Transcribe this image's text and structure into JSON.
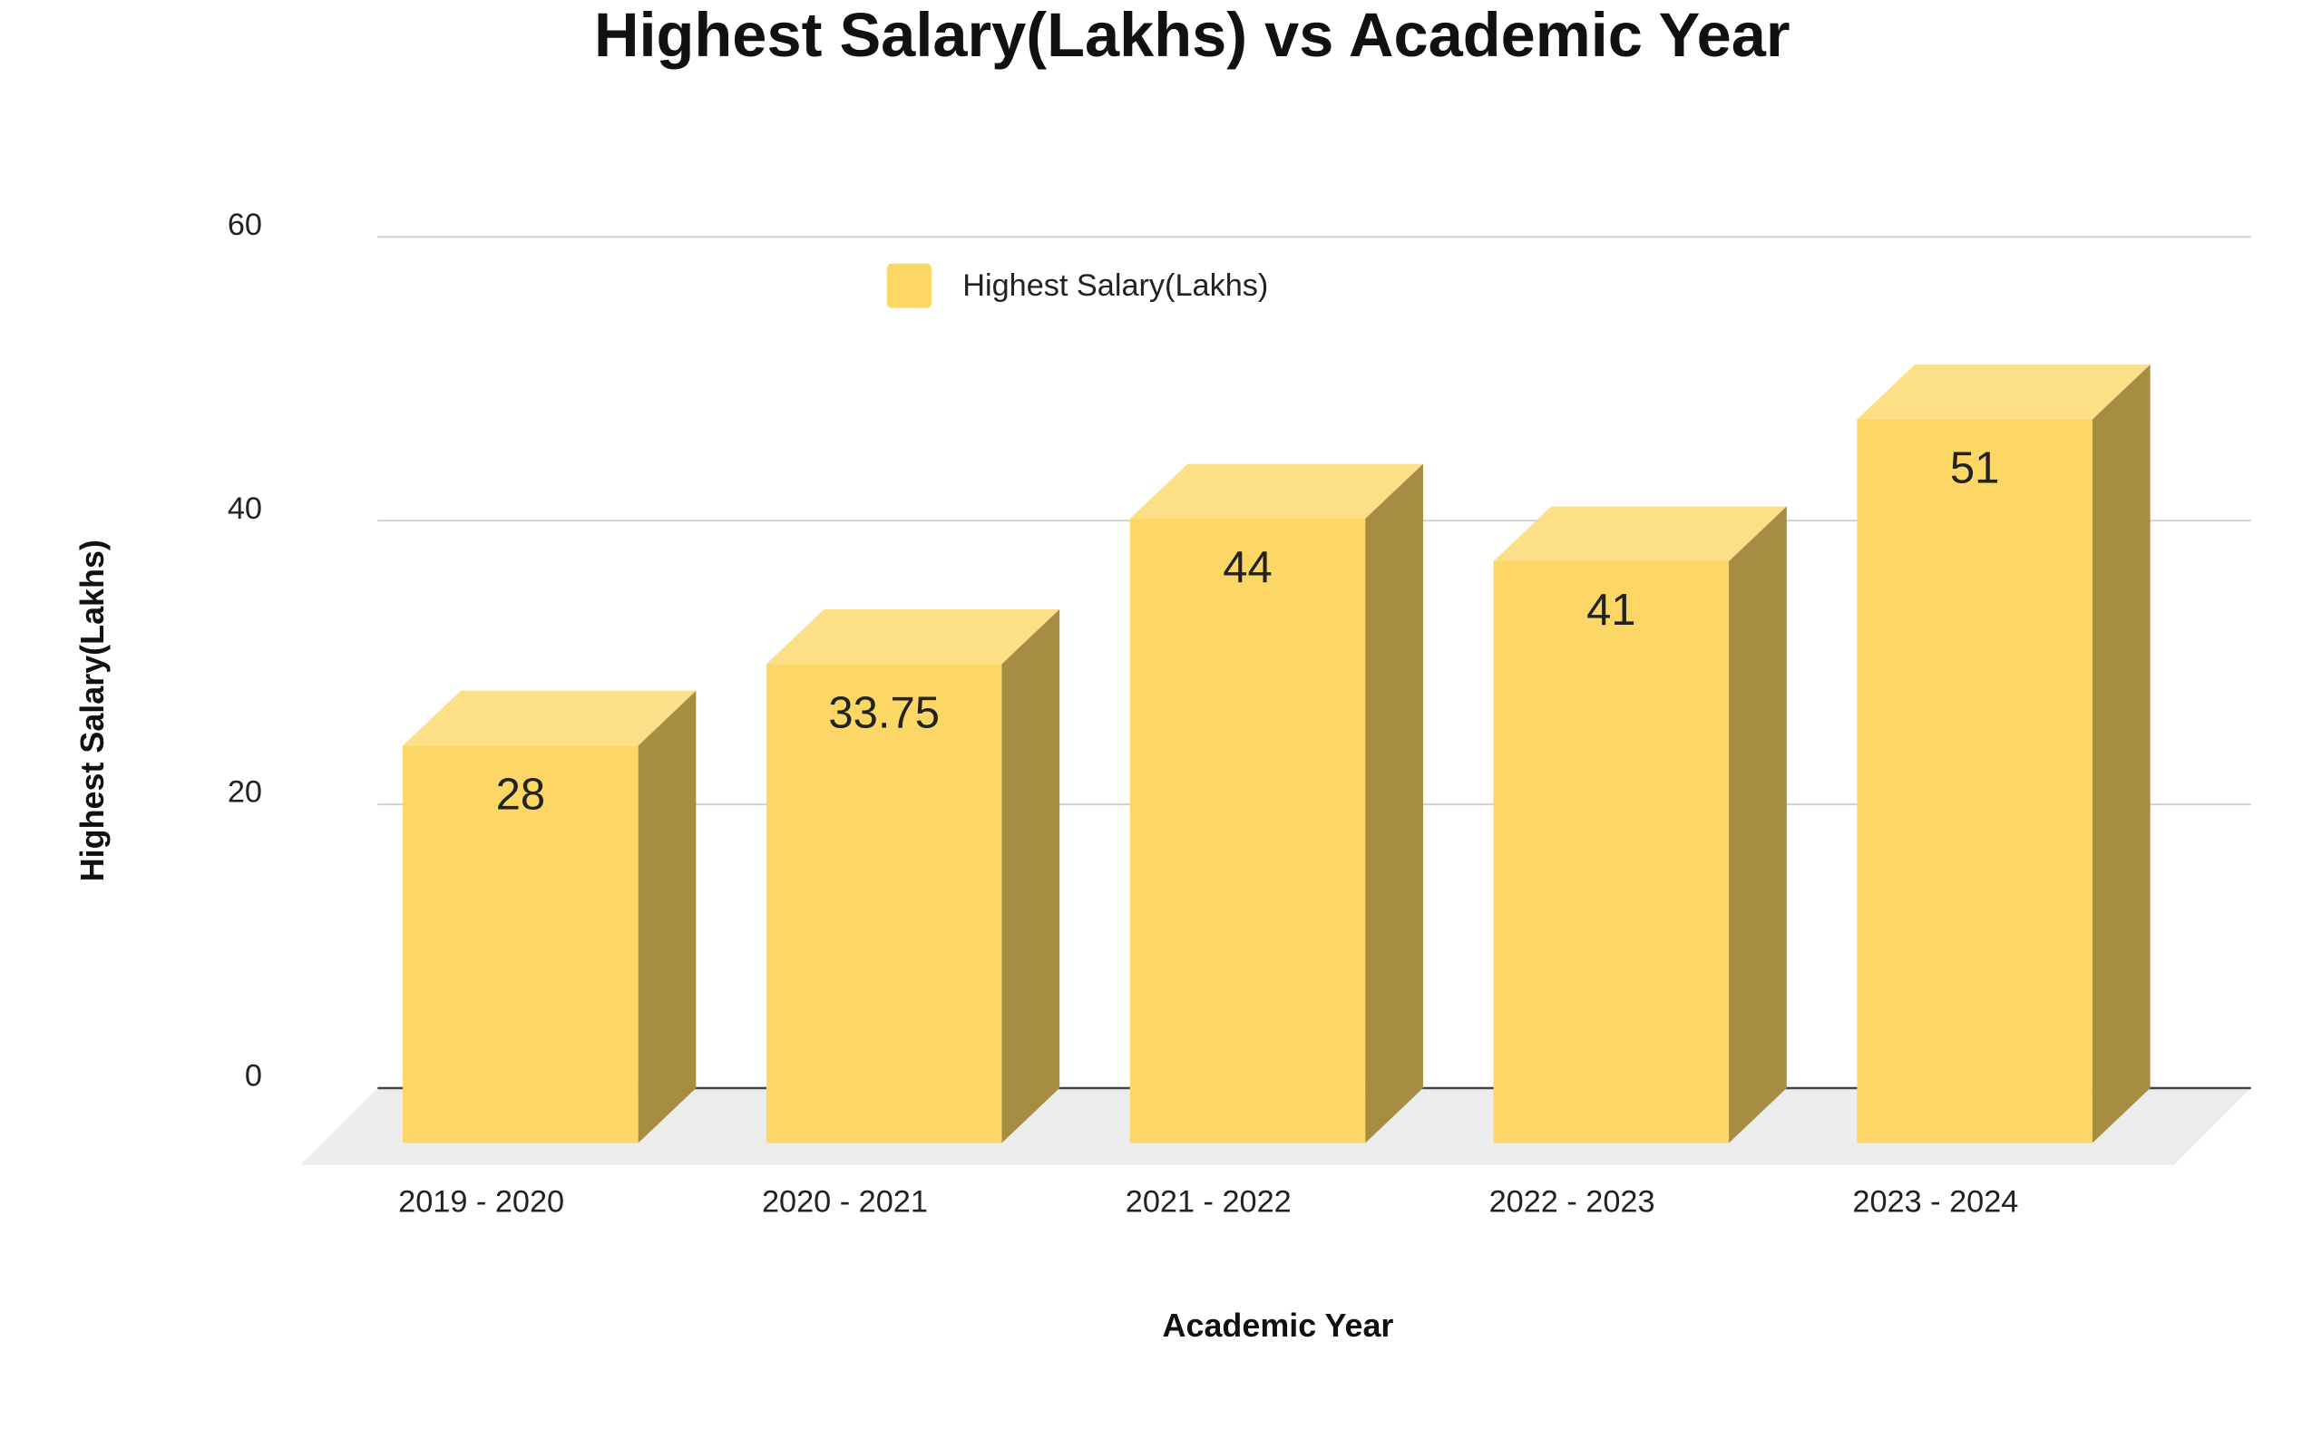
{
  "chart_data": {
    "type": "bar3d",
    "title": "Highest Salary(Lakhs) vs Academic Year",
    "x_label": "Academic Year",
    "y_label": "Highest Salary(Lakhs)",
    "categories": [
      "2019 - 2020",
      "2020 - 2021",
      "2021 - 2022",
      "2022 - 2023",
      "2023 - 2024"
    ],
    "series": [
      {
        "name": "Highest Salary(Lakhs)",
        "color": "#fcd765",
        "values": [
          28,
          33.75,
          44,
          41,
          51
        ]
      }
    ],
    "ylim": [
      0,
      60
    ],
    "yticks": [
      0,
      20,
      40,
      60
    ],
    "grid": true,
    "legend": "top"
  }
}
